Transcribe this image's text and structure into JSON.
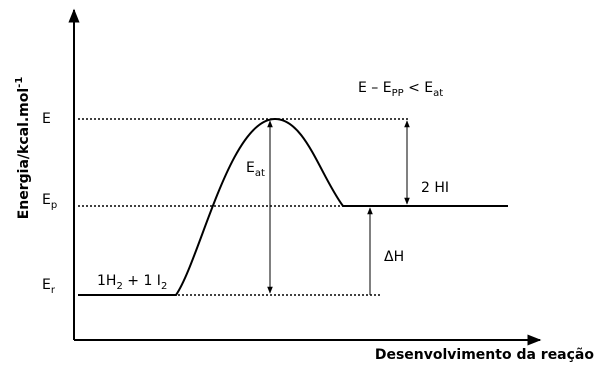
{
  "axes": {
    "y_label": {
      "text": "Energia/kcal.mol",
      "sup": "-1"
    },
    "x_label": "Desenvolvimento da reação"
  },
  "levels": {
    "E": {
      "text": "E"
    },
    "Ep": {
      "text": "E",
      "sub": "p"
    },
    "Er": {
      "text": "E",
      "sub": "r"
    }
  },
  "condition": {
    "parts": [
      "E – E",
      "PP",
      " < E",
      "at"
    ]
  },
  "activation": {
    "text": "E",
    "sub": "at"
  },
  "product": "2 HI",
  "enthalpy": "ΔH",
  "reactants": {
    "parts": [
      "1H",
      "2",
      " + 1 I",
      "2"
    ]
  }
}
